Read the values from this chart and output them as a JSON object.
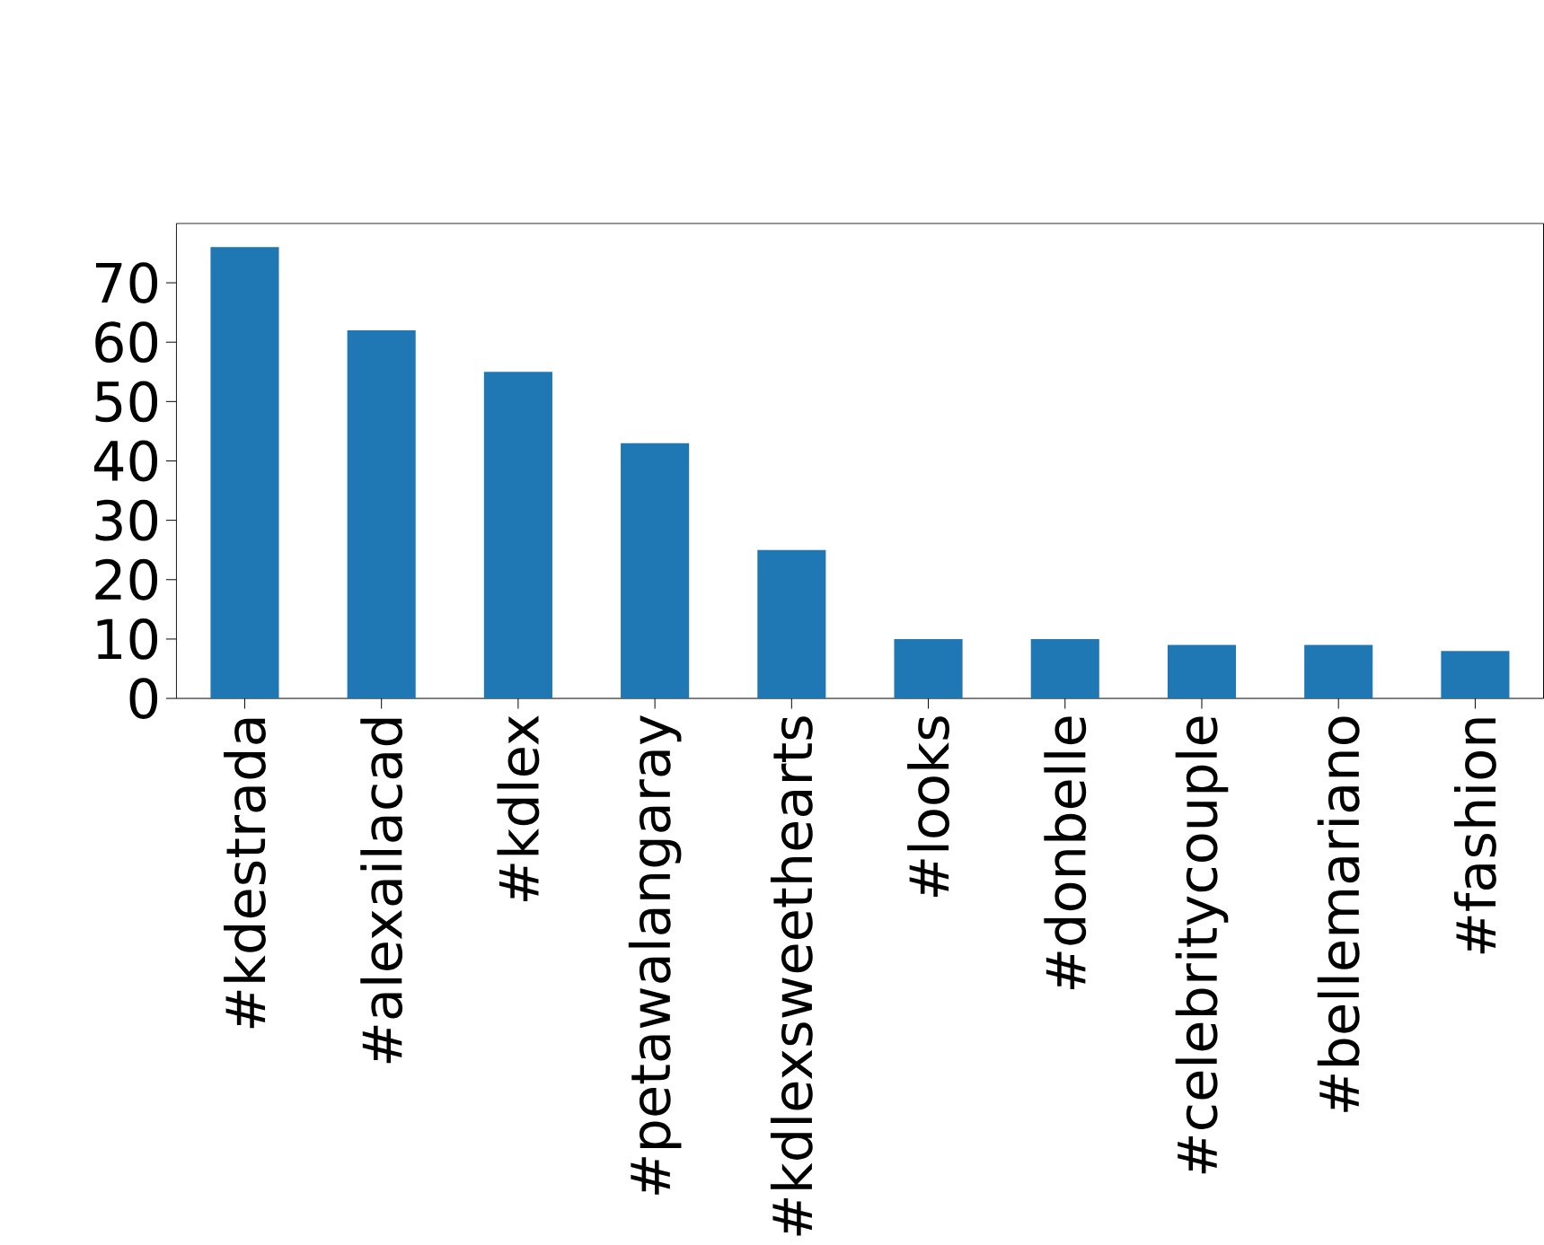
{
  "chart_data": {
    "type": "bar",
    "categories": [
      "#kdestrada",
      "#alexailacad",
      "#kdlex",
      "#petawalangaray",
      "#kdlexsweethearts",
      "#looks",
      "#donbelle",
      "#celebritycouple",
      "#bellemariano",
      "#fashion"
    ],
    "values": [
      76,
      62,
      55,
      43,
      25,
      10,
      10,
      9,
      9,
      8
    ],
    "color": "#1f77b4",
    "ylim": [
      0,
      80
    ],
    "yticks": [
      0,
      10,
      20,
      30,
      40,
      50,
      60,
      70
    ]
  }
}
